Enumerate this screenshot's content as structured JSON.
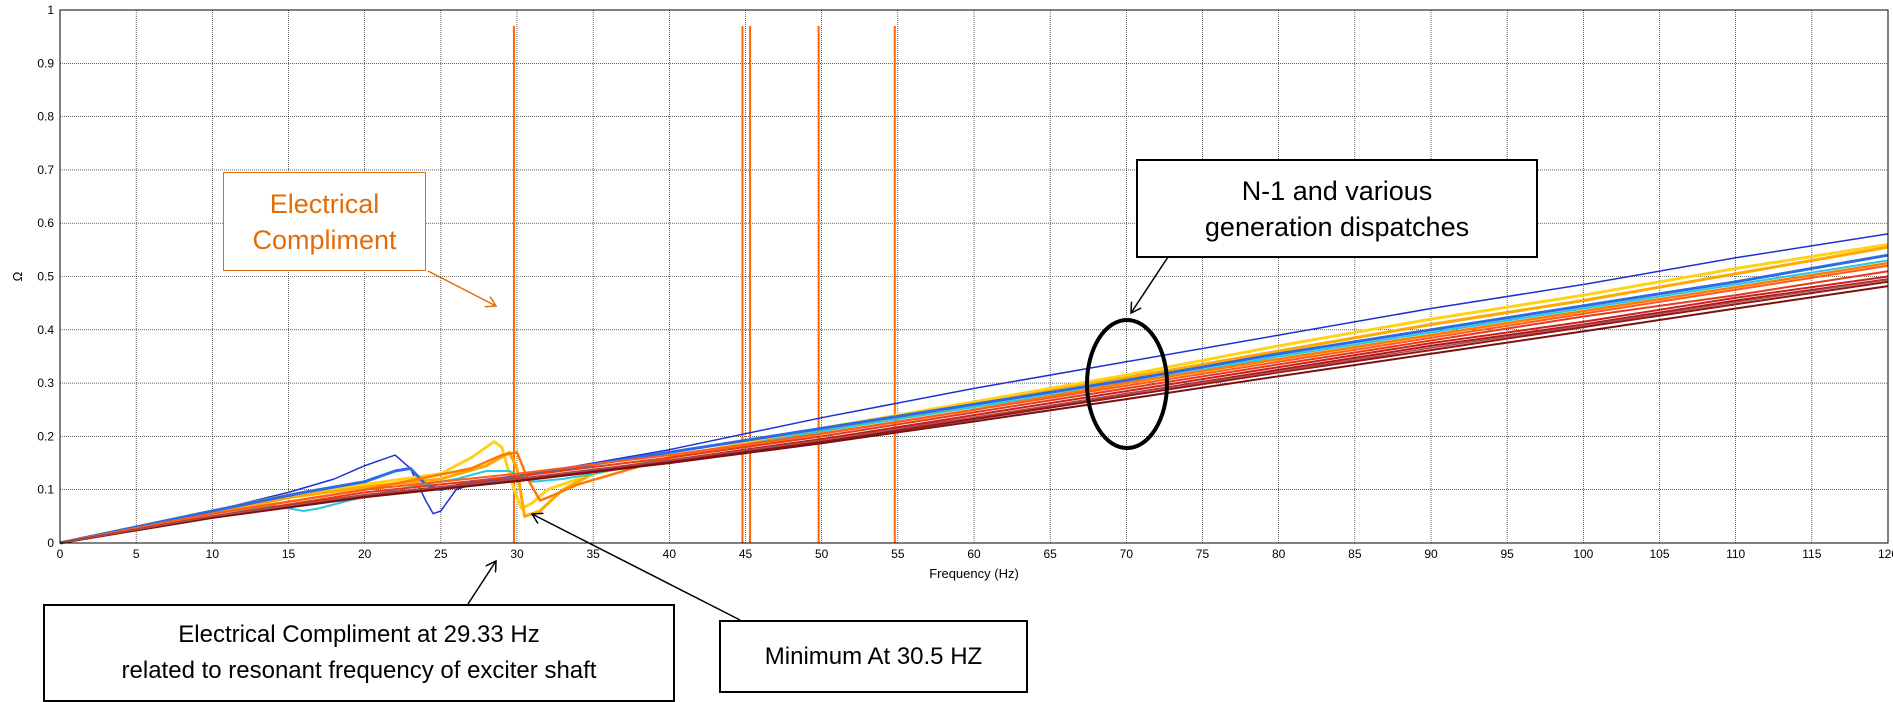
{
  "chart_data": {
    "type": "line",
    "xlabel": "Frequency (Hz)",
    "ylabel": "Ω",
    "xlim": [
      0,
      120
    ],
    "ylim": [
      0,
      1
    ],
    "x_ticks": [
      0,
      5,
      10,
      15,
      20,
      25,
      30,
      35,
      40,
      45,
      50,
      55,
      60,
      65,
      70,
      75,
      80,
      85,
      90,
      95,
      100,
      105,
      110,
      115,
      120
    ],
    "y_ticks": [
      0,
      0.1,
      0.2,
      0.3,
      0.4,
      0.5,
      0.6,
      0.7,
      0.8,
      0.9,
      1
    ],
    "grid": true,
    "vertical_markers": [
      29.8,
      44.8,
      45.3,
      49.8,
      54.8
    ],
    "vertical_marker_range": [
      0,
      0.97
    ],
    "marker_color": "#ff6600",
    "series": [
      {
        "color": "#1f2fd6",
        "width": 1.5,
        "points": [
          [
            0,
            0
          ],
          [
            10,
            0.06
          ],
          [
            15,
            0.095
          ],
          [
            18,
            0.12
          ],
          [
            20,
            0.145
          ],
          [
            22,
            0.165
          ],
          [
            23,
            0.14
          ],
          [
            24,
            0.08
          ],
          [
            24.5,
            0.055
          ],
          [
            25,
            0.06
          ],
          [
            26,
            0.1
          ],
          [
            27,
            0.11
          ],
          [
            30,
            0.125
          ],
          [
            40,
            0.175
          ],
          [
            50,
            0.235
          ],
          [
            60,
            0.29
          ],
          [
            70,
            0.34
          ],
          [
            80,
            0.39
          ],
          [
            90,
            0.44
          ],
          [
            100,
            0.485
          ],
          [
            110,
            0.535
          ],
          [
            120,
            0.58
          ]
        ]
      },
      {
        "color": "#ffd21a",
        "width": 3,
        "points": [
          [
            0,
            0
          ],
          [
            10,
            0.06
          ],
          [
            15,
            0.09
          ],
          [
            20,
            0.11
          ],
          [
            25,
            0.13
          ],
          [
            27,
            0.16
          ],
          [
            28.5,
            0.19
          ],
          [
            29,
            0.18
          ],
          [
            29.8,
            0.1
          ],
          [
            30.3,
            0.065
          ],
          [
            31,
            0.075
          ],
          [
            32,
            0.1
          ],
          [
            35,
            0.13
          ],
          [
            40,
            0.16
          ],
          [
            50,
            0.215
          ],
          [
            60,
            0.265
          ],
          [
            70,
            0.315
          ],
          [
            80,
            0.37
          ],
          [
            90,
            0.42
          ],
          [
            100,
            0.465
          ],
          [
            110,
            0.515
          ],
          [
            120,
            0.56
          ]
        ]
      },
      {
        "color": "#ffa800",
        "width": 3,
        "points": [
          [
            0,
            0
          ],
          [
            10,
            0.055
          ],
          [
            15,
            0.085
          ],
          [
            20,
            0.105
          ],
          [
            25,
            0.12
          ],
          [
            28,
            0.145
          ],
          [
            29.5,
            0.17
          ],
          [
            30,
            0.14
          ],
          [
            30.5,
            0.05
          ],
          [
            31.5,
            0.06
          ],
          [
            33,
            0.1
          ],
          [
            35,
            0.13
          ],
          [
            40,
            0.16
          ],
          [
            50,
            0.21
          ],
          [
            60,
            0.26
          ],
          [
            70,
            0.31
          ],
          [
            80,
            0.36
          ],
          [
            90,
            0.41
          ],
          [
            100,
            0.455
          ],
          [
            110,
            0.505
          ],
          [
            120,
            0.555
          ]
        ]
      },
      {
        "color": "#2b6be8",
        "width": 3,
        "points": [
          [
            0,
            0
          ],
          [
            10,
            0.06
          ],
          [
            16,
            0.095
          ],
          [
            20,
            0.115
          ],
          [
            22,
            0.135
          ],
          [
            23,
            0.14
          ],
          [
            24,
            0.11
          ],
          [
            25,
            0.1
          ],
          [
            27,
            0.115
          ],
          [
            30,
            0.125
          ],
          [
            40,
            0.17
          ],
          [
            50,
            0.215
          ],
          [
            60,
            0.26
          ],
          [
            70,
            0.305
          ],
          [
            80,
            0.355
          ],
          [
            90,
            0.4
          ],
          [
            100,
            0.445
          ],
          [
            110,
            0.49
          ],
          [
            120,
            0.54
          ]
        ]
      },
      {
        "color": "#29c8e0",
        "width": 2,
        "points": [
          [
            0,
            0
          ],
          [
            10,
            0.055
          ],
          [
            14,
            0.07
          ],
          [
            15,
            0.065
          ],
          [
            16,
            0.06
          ],
          [
            17,
            0.065
          ],
          [
            19,
            0.08
          ],
          [
            22,
            0.1
          ],
          [
            26,
            0.12
          ],
          [
            28,
            0.135
          ],
          [
            29.5,
            0.135
          ],
          [
            31,
            0.115
          ],
          [
            33,
            0.12
          ],
          [
            35,
            0.13
          ],
          [
            40,
            0.16
          ],
          [
            50,
            0.21
          ],
          [
            60,
            0.255
          ],
          [
            70,
            0.3
          ],
          [
            80,
            0.35
          ],
          [
            90,
            0.395
          ],
          [
            100,
            0.44
          ],
          [
            110,
            0.485
          ],
          [
            120,
            0.53
          ]
        ]
      },
      {
        "color": "#ff7a00",
        "width": 2.5,
        "points": [
          [
            0,
            0
          ],
          [
            10,
            0.055
          ],
          [
            20,
            0.1
          ],
          [
            27,
            0.14
          ],
          [
            29,
            0.165
          ],
          [
            30,
            0.17
          ],
          [
            30.7,
            0.12
          ],
          [
            31.5,
            0.08
          ],
          [
            32,
            0.085
          ],
          [
            34,
            0.11
          ],
          [
            40,
            0.16
          ],
          [
            50,
            0.205
          ],
          [
            60,
            0.25
          ],
          [
            70,
            0.3
          ],
          [
            80,
            0.345
          ],
          [
            90,
            0.39
          ],
          [
            100,
            0.435
          ],
          [
            110,
            0.48
          ],
          [
            120,
            0.525
          ]
        ]
      },
      {
        "color": "#ff5a1a",
        "width": 2,
        "points": [
          [
            0,
            0
          ],
          [
            10,
            0.055
          ],
          [
            20,
            0.1
          ],
          [
            30,
            0.13
          ],
          [
            40,
            0.165
          ],
          [
            50,
            0.205
          ],
          [
            60,
            0.25
          ],
          [
            70,
            0.295
          ],
          [
            80,
            0.34
          ],
          [
            90,
            0.385
          ],
          [
            100,
            0.43
          ],
          [
            110,
            0.475
          ],
          [
            120,
            0.52
          ]
        ]
      },
      {
        "color": "#e63a1a",
        "width": 2,
        "points": [
          [
            0,
            0
          ],
          [
            10,
            0.05
          ],
          [
            20,
            0.095
          ],
          [
            30,
            0.125
          ],
          [
            40,
            0.16
          ],
          [
            50,
            0.2
          ],
          [
            60,
            0.245
          ],
          [
            70,
            0.29
          ],
          [
            80,
            0.335
          ],
          [
            90,
            0.38
          ],
          [
            100,
            0.425
          ],
          [
            110,
            0.465
          ],
          [
            120,
            0.51
          ]
        ]
      },
      {
        "color": "#cc1f1f",
        "width": 2,
        "points": [
          [
            0,
            0
          ],
          [
            10,
            0.05
          ],
          [
            20,
            0.09
          ],
          [
            30,
            0.12
          ],
          [
            40,
            0.155
          ],
          [
            50,
            0.195
          ],
          [
            60,
            0.24
          ],
          [
            70,
            0.285
          ],
          [
            80,
            0.33
          ],
          [
            90,
            0.375
          ],
          [
            100,
            0.415
          ],
          [
            110,
            0.46
          ],
          [
            120,
            0.5
          ]
        ]
      },
      {
        "color": "#b01818",
        "width": 2,
        "points": [
          [
            0,
            0
          ],
          [
            10,
            0.05
          ],
          [
            20,
            0.09
          ],
          [
            30,
            0.12
          ],
          [
            40,
            0.155
          ],
          [
            50,
            0.195
          ],
          [
            60,
            0.235
          ],
          [
            70,
            0.28
          ],
          [
            80,
            0.325
          ],
          [
            90,
            0.37
          ],
          [
            100,
            0.41
          ],
          [
            110,
            0.455
          ],
          [
            120,
            0.495
          ]
        ]
      },
      {
        "color": "#961414",
        "width": 2,
        "points": [
          [
            0,
            0
          ],
          [
            10,
            0.048
          ],
          [
            20,
            0.088
          ],
          [
            30,
            0.118
          ],
          [
            40,
            0.152
          ],
          [
            50,
            0.19
          ],
          [
            60,
            0.232
          ],
          [
            70,
            0.276
          ],
          [
            80,
            0.32
          ],
          [
            90,
            0.362
          ],
          [
            100,
            0.405
          ],
          [
            110,
            0.448
          ],
          [
            120,
            0.49
          ]
        ]
      },
      {
        "color": "#7c1010",
        "width": 2,
        "points": [
          [
            0,
            0
          ],
          [
            10,
            0.047
          ],
          [
            20,
            0.086
          ],
          [
            30,
            0.116
          ],
          [
            40,
            0.15
          ],
          [
            50,
            0.187
          ],
          [
            60,
            0.228
          ],
          [
            70,
            0.27
          ],
          [
            80,
            0.313
          ],
          [
            90,
            0.355
          ],
          [
            100,
            0.397
          ],
          [
            110,
            0.44
          ],
          [
            120,
            0.482
          ]
        ]
      },
      {
        "color": "#a85050",
        "width": 1.5,
        "points": [
          [
            0,
            0
          ],
          [
            10,
            0.05
          ],
          [
            20,
            0.09
          ],
          [
            30,
            0.12
          ],
          [
            40,
            0.155
          ],
          [
            50,
            0.193
          ],
          [
            60,
            0.236
          ],
          [
            70,
            0.28
          ],
          [
            80,
            0.322
          ],
          [
            90,
            0.366
          ],
          [
            100,
            0.408
          ],
          [
            110,
            0.452
          ],
          [
            120,
            0.494
          ]
        ]
      }
    ],
    "annotations": {
      "electrical_compliment": {
        "lines": [
          "Electrical",
          "Compliment"
        ],
        "color": "#e36c09"
      },
      "n1_box": {
        "lines": [
          "N-1 and various",
          "generation dispatches"
        ]
      },
      "resonant_box": {
        "lines": [
          "Electrical Compliment at 29.33 Hz",
          "related to resonant frequency of exciter shaft"
        ]
      },
      "minimum_box": {
        "text": "Minimum At 30.5 HZ"
      }
    }
  }
}
